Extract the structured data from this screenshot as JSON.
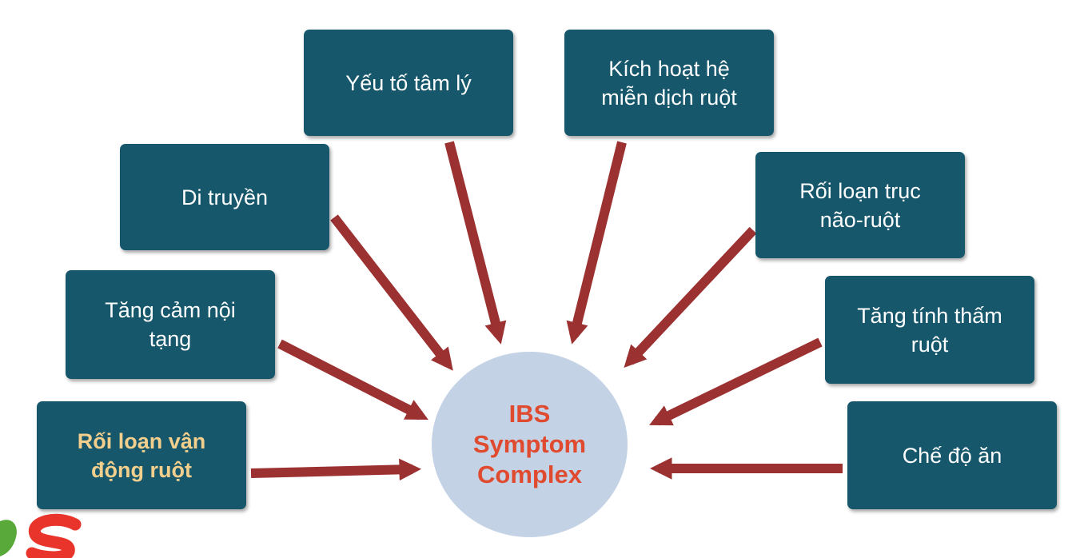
{
  "diagram": {
    "center": {
      "label": "IBS\nSymptom\nComplex"
    },
    "factors": [
      {
        "id": "yeu-to-tam-ly",
        "label": "Yếu tố tâm lý"
      },
      {
        "id": "kich-hoat-he-mien-dich-ruot",
        "label": "Kích hoạt hệ\nmiễn dịch ruột"
      },
      {
        "id": "di-truyen",
        "label": "Di truyền"
      },
      {
        "id": "roi-loan-truc-nao-ruot",
        "label": "Rối loạn trục\nnão-ruột"
      },
      {
        "id": "tang-cam-noi-tang",
        "label": "Tăng cảm nội\ntạng"
      },
      {
        "id": "tang-tinh-tham-ruot",
        "label": "Tăng tính thấm\nruột"
      },
      {
        "id": "roi-loan-van-dong-ruot",
        "label": "Rối loạn vận\nđộng ruột",
        "highlighted": true
      },
      {
        "id": "che-do-an",
        "label": "Chế độ ăn"
      }
    ]
  },
  "colors": {
    "box_fill": "#16576c",
    "box_text": "#ffffff",
    "highlight_text": "#f2cf8c",
    "arrow": "#9b3131",
    "circle_fill": "#c3d2e5",
    "circle_text": "#e04a2f"
  }
}
